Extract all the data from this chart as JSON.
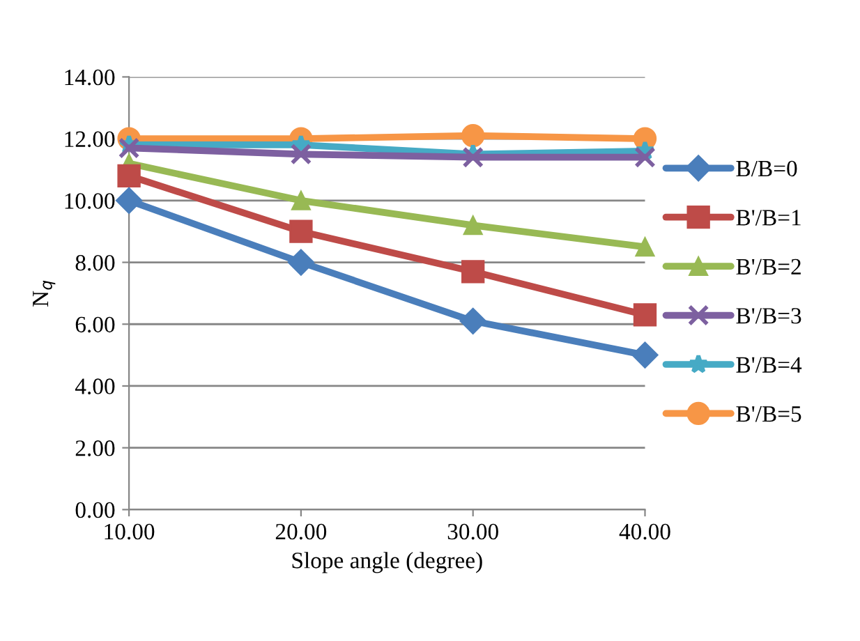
{
  "chart_data": {
    "type": "line",
    "xlabel": "Slope angle (degree)",
    "ylabel": "N$_{q}$",
    "x": [
      10,
      20,
      30,
      40
    ],
    "series": [
      {
        "name": "B/B=0",
        "color": "#4a7ebb",
        "marker": "diamond",
        "values": [
          10.0,
          8.0,
          6.1,
          5.0
        ]
      },
      {
        "name": "B'/B=1",
        "color": "#be4b48",
        "marker": "square",
        "values": [
          10.8,
          9.0,
          7.7,
          6.3
        ]
      },
      {
        "name": "B'/B=2",
        "color": "#98b954",
        "marker": "triangle",
        "values": [
          11.2,
          10.0,
          9.2,
          8.5
        ]
      },
      {
        "name": "B'/B=3",
        "color": "#7d60a0",
        "marker": "cross",
        "values": [
          11.7,
          11.5,
          11.4,
          11.4
        ]
      },
      {
        "name": "B'/B=4",
        "color": "#46aac5",
        "marker": "star",
        "values": [
          11.8,
          11.8,
          11.5,
          11.6
        ]
      },
      {
        "name": "B'/B=5",
        "color": "#f79646",
        "marker": "circle",
        "values": [
          12.0,
          12.0,
          12.1,
          12.0
        ]
      }
    ],
    "xlim": [
      10,
      40
    ],
    "xticks": [
      {
        "value": 10,
        "label": "10.00"
      },
      {
        "value": 20,
        "label": "20.00"
      },
      {
        "value": 30,
        "label": "30.00"
      },
      {
        "value": 40,
        "label": "40.00"
      }
    ],
    "ylim": [
      0,
      14
    ],
    "yticks": [
      {
        "value": 0,
        "label": "0.00"
      },
      {
        "value": 2,
        "label": "2.00"
      },
      {
        "value": 4,
        "label": "4.00"
      },
      {
        "value": 6,
        "label": "6.00"
      },
      {
        "value": 8,
        "label": "8.00"
      },
      {
        "value": 10,
        "label": "10.00"
      },
      {
        "value": 12,
        "label": "12.00"
      },
      {
        "value": 14,
        "label": "14.00"
      }
    ],
    "grid": "y",
    "legend": "right",
    "line_style": "solid"
  }
}
